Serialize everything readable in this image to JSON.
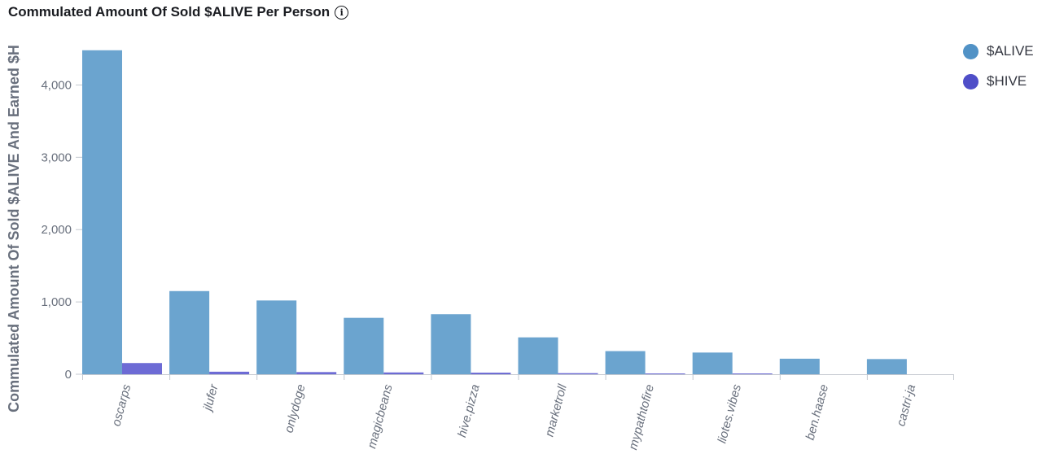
{
  "header": {
    "title": "Commulated Amount Of Sold $ALIVE Per Person",
    "info_icon": "info-icon"
  },
  "chart_data": {
    "type": "bar",
    "title": "Commulated Amount Of Sold $ALIVE Per Person",
    "xlabel": "",
    "ylabel": "Commulated Amount Of Sold $ALIVE And Earned $H",
    "ylim": [
      0,
      4500
    ],
    "yticks": [
      0,
      1000,
      2000,
      3000,
      4000
    ],
    "ytick_labels": [
      "0",
      "1,000",
      "2,000",
      "3,000",
      "4,000"
    ],
    "categories": [
      "oscarps",
      "jlufer",
      "onlydoge",
      "magicbeans",
      "hive.pizza",
      "marketroll",
      "mypathtofire",
      "liotes.vibes",
      "ben.haase",
      "castri-ja"
    ],
    "series": [
      {
        "name": "$ALIVE",
        "color": "#6ba4cf",
        "legend_color": "#5192c6",
        "values": [
          4480,
          1150,
          1020,
          780,
          830,
          510,
          320,
          300,
          215,
          210
        ]
      },
      {
        "name": "$HIVE",
        "color": "#6d6bd5",
        "legend_color": "#4f4ec8",
        "values": [
          155,
          35,
          30,
          25,
          22,
          15,
          8,
          5,
          0,
          0
        ]
      }
    ],
    "grid": false,
    "legend_position": "top-right"
  }
}
